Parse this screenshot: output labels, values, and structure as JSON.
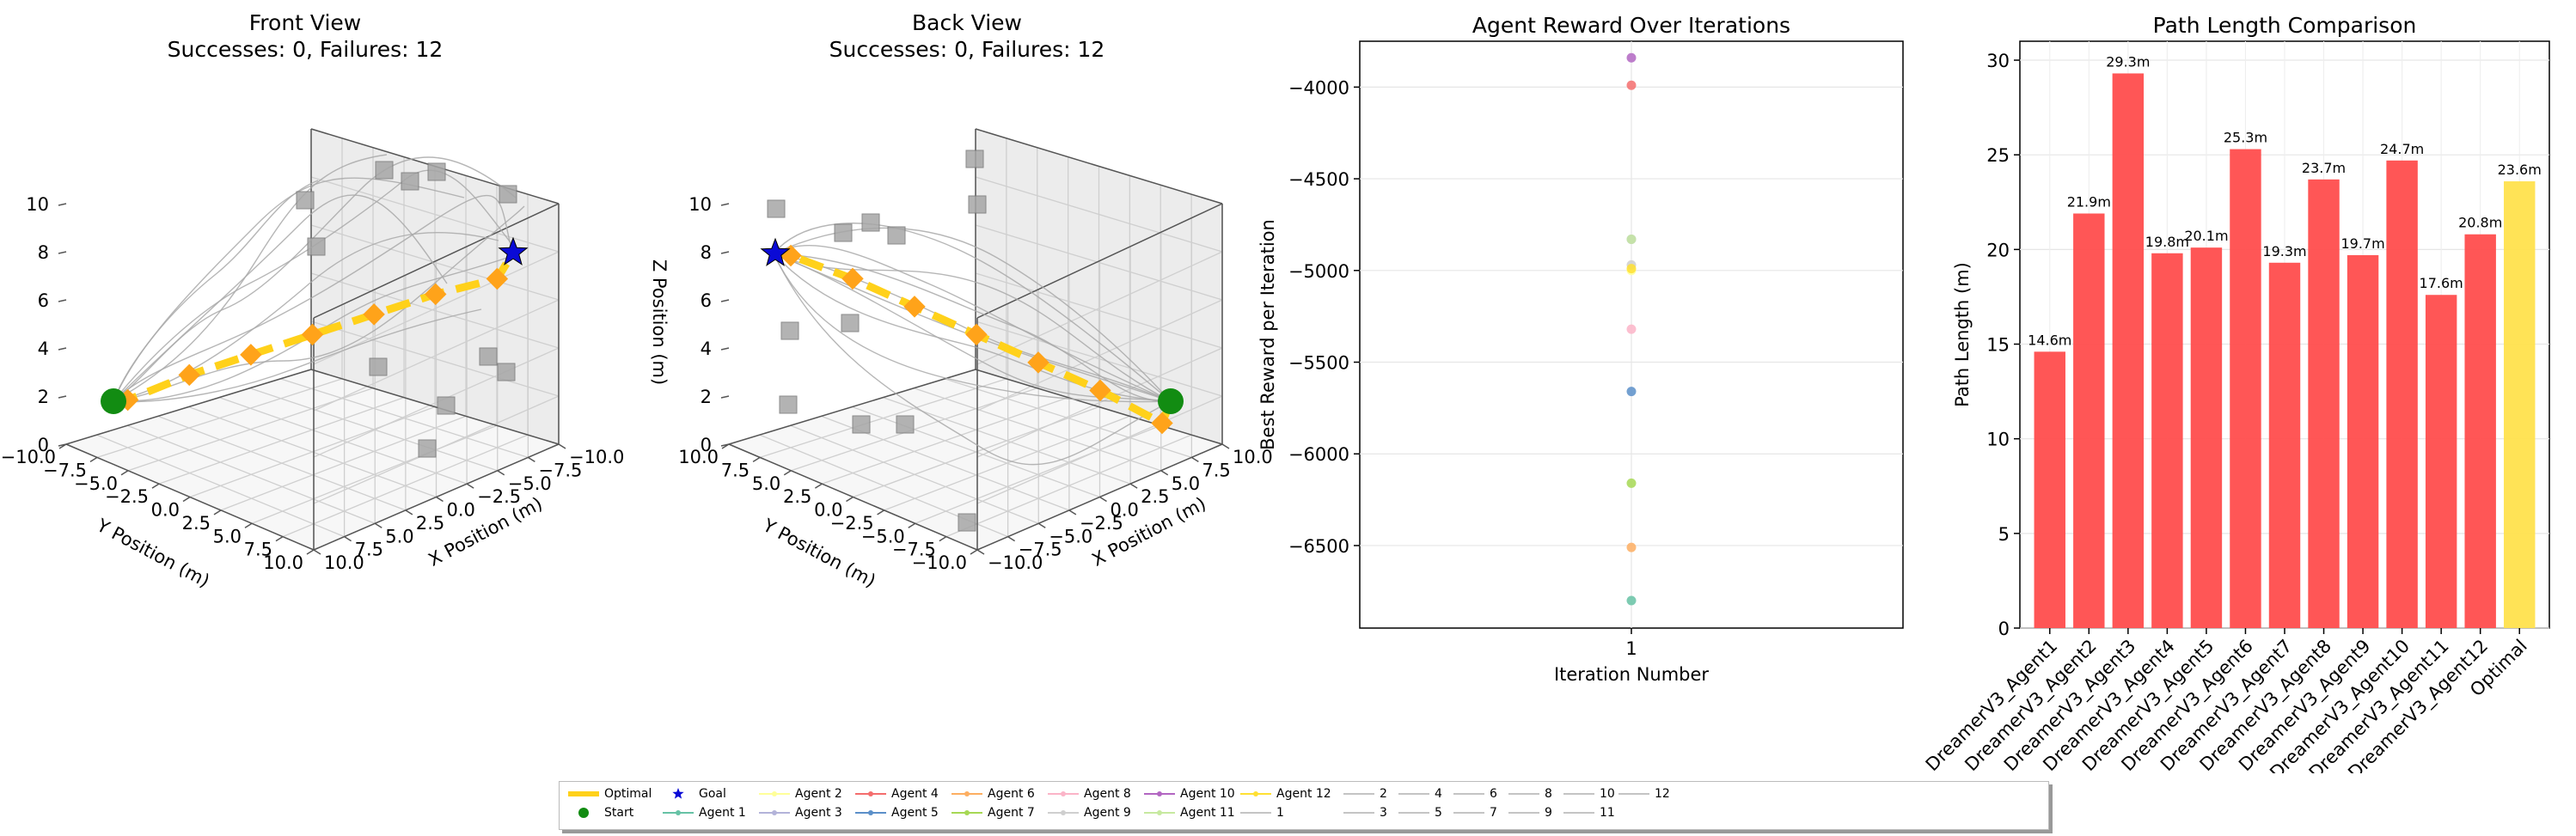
{
  "charts": {
    "front": {
      "title": "Front View",
      "subtitle": "Successes: 0, Failures: 12",
      "xlabel": "X Position (m)",
      "ylabel": "Y Position (m)",
      "zticks": [
        "0",
        "2",
        "4",
        "6",
        "8",
        "10"
      ],
      "yticks": [
        "−10.0",
        "−7.5",
        "−5.0",
        "−2.5",
        "0.0",
        "2.5",
        "5.0",
        "7.5",
        "10.0"
      ],
      "xticks": [
        "10.0",
        "7.5",
        "5.0",
        "2.5",
        "0.0",
        "−2.5",
        "−5.0",
        "−7.5",
        "−10.0"
      ]
    },
    "back": {
      "title": "Back View",
      "subtitle": "Successes: 0, Failures: 12",
      "xlabel": "X Position (m)",
      "ylabel": "Y Position (m)",
      "zlabel": "Z Position (m)",
      "zticks": [
        "0",
        "2",
        "4",
        "6",
        "8",
        "10"
      ],
      "yticks": [
        "10.0",
        "7.5",
        "5.0",
        "2.5",
        "0.0",
        "−2.5",
        "−5.0",
        "−7.5",
        "−10.0"
      ],
      "xticks": [
        "−10.0",
        "−7.5",
        "−5.0",
        "−2.5",
        "0.0",
        "2.5",
        "5.0",
        "7.5",
        "10.0"
      ]
    },
    "reward": {
      "title": "Agent Reward Over Iterations",
      "xlabel": "Iteration Number",
      "ylabel": "Best Reward per Iteration"
    },
    "path": {
      "title": "Path Length Comparison",
      "xlabel": "Agent",
      "ylabel": "Path Length (m)"
    }
  },
  "chart_data": [
    {
      "type": "scatter",
      "title": "Front View",
      "subtitle": "Successes: 0, Failures: 12",
      "xlabel": "X Position (m)",
      "ylabel": "Y Position (m)",
      "zlabel": "",
      "xlim": [
        -10,
        10
      ],
      "ylim": [
        -10,
        10
      ],
      "zlim": [
        0,
        10
      ],
      "optimal_path": {
        "name": "Optimal",
        "points": [
          [
            -7.5,
            -7.5,
            2.0
          ],
          [
            -5.0,
            -5.0,
            3.2
          ],
          [
            -2.5,
            -2.5,
            4.2
          ],
          [
            0,
            0,
            5.2
          ],
          [
            2.5,
            2.5,
            6.2
          ],
          [
            5,
            5,
            7.2
          ],
          [
            7.5,
            7.5,
            8.0
          ]
        ]
      },
      "start": [
        -10,
        -10,
        2.0
      ],
      "goal": [
        10,
        10,
        8.0
      ]
    },
    {
      "type": "scatter",
      "title": "Back View",
      "subtitle": "Successes: 0, Failures: 12",
      "xlabel": "X Position (m)",
      "ylabel": "Y Position (m)",
      "zlabel": "Z Position (m)",
      "xlim": [
        -10,
        10
      ],
      "ylim": [
        -10,
        10
      ],
      "zlim": [
        0,
        10
      ]
    },
    {
      "type": "scatter",
      "title": "Agent Reward Over Iterations",
      "xlabel": "Iteration Number",
      "ylabel": "Best Reward per Iteration",
      "x_categories": [
        "1"
      ],
      "ylim": [
        -6950,
        -3750
      ],
      "yticks": [
        -4000,
        -4500,
        -5000,
        -5500,
        -6000,
        -6500
      ],
      "series": [
        {
          "name": "Agent 1",
          "value": -6800,
          "color": "#66c2a5"
        },
        {
          "name": "Agent 2",
          "value": -5000,
          "color": "#ffff99"
        },
        {
          "name": "Agent 3",
          "value": -4830,
          "color": "#b3b3d9"
        },
        {
          "name": "Agent 4",
          "value": -3990,
          "color": "#f46d6d"
        },
        {
          "name": "Agent 5",
          "value": -5660,
          "color": "#5b8fc9"
        },
        {
          "name": "Agent 6",
          "value": -6510,
          "color": "#fdae61"
        },
        {
          "name": "Agent 7",
          "value": -6160,
          "color": "#a6d854"
        },
        {
          "name": "Agent 8",
          "value": -5320,
          "color": "#fbb4c8"
        },
        {
          "name": "Agent 9",
          "value": -4970,
          "color": "#cfcfcf"
        },
        {
          "name": "Agent 10",
          "value": -3840,
          "color": "#b266c2"
        },
        {
          "name": "Agent 11",
          "value": -4830,
          "color": "#c7e9a0"
        },
        {
          "name": "Agent 12",
          "value": -4990,
          "color": "#ffe033"
        }
      ]
    },
    {
      "type": "bar",
      "title": "Path Length Comparison",
      "xlabel": "Agent",
      "ylabel": "Path Length (m)",
      "ylim": [
        0,
        31
      ],
      "yticks": [
        0,
        5,
        10,
        15,
        20,
        25,
        30
      ],
      "categories": [
        "DreamerV3_Agent1",
        "DreamerV3_Agent2",
        "DreamerV3_Agent3",
        "DreamerV3_Agent4",
        "DreamerV3_Agent5",
        "DreamerV3_Agent6",
        "DreamerV3_Agent7",
        "DreamerV3_Agent8",
        "DreamerV3_Agent9",
        "DreamerV3_Agent10",
        "DreamerV3_Agent11",
        "DreamerV3_Agent12",
        "Optimal"
      ],
      "values": [
        14.6,
        21.9,
        29.3,
        19.8,
        20.1,
        25.3,
        19.3,
        23.7,
        19.7,
        24.7,
        17.6,
        20.8,
        23.6
      ],
      "labels": [
        "14.6m",
        "21.9m",
        "29.3m",
        "19.8m",
        "20.1m",
        "25.3m",
        "19.3m",
        "23.7m",
        "19.7m",
        "24.7m",
        "17.6m",
        "20.8m",
        "23.6m"
      ],
      "colors": {
        "agent": "#ff4d4d",
        "optimal": "#ffe14d"
      }
    }
  ],
  "legend": {
    "items": [
      {
        "label": "Optimal",
        "kind": "thick",
        "color": "#ffd11a"
      },
      {
        "label": "Start",
        "kind": "dot",
        "color": "#128c12"
      },
      {
        "label": "Goal",
        "kind": "star",
        "color": "#0a0ad6"
      },
      {
        "label": "Agent 1",
        "kind": "line",
        "color": "#66c2a5"
      },
      {
        "label": "Agent 2",
        "kind": "line",
        "color": "#ffff99"
      },
      {
        "label": "Agent 3",
        "kind": "line",
        "color": "#b3b3d9"
      },
      {
        "label": "Agent 4",
        "kind": "line",
        "color": "#f46d6d"
      },
      {
        "label": "Agent 5",
        "kind": "line",
        "color": "#5b8fc9"
      },
      {
        "label": "Agent 6",
        "kind": "line",
        "color": "#fdae61"
      },
      {
        "label": "Agent 7",
        "kind": "line",
        "color": "#a6d854"
      },
      {
        "label": "Agent 8",
        "kind": "line",
        "color": "#fbb4c8"
      },
      {
        "label": "Agent 9",
        "kind": "line",
        "color": "#cfcfcf"
      },
      {
        "label": "Agent 10",
        "kind": "line",
        "color": "#b266c2"
      },
      {
        "label": "Agent 11",
        "kind": "line",
        "color": "#c7e9a0"
      },
      {
        "label": "Agent 12",
        "kind": "line",
        "color": "#ffe033"
      },
      {
        "label": "1",
        "kind": "gray",
        "color": "#b0b0b0"
      },
      {
        "label": "2",
        "kind": "gray",
        "color": "#b0b0b0"
      },
      {
        "label": "3",
        "kind": "gray",
        "color": "#b0b0b0"
      },
      {
        "label": "4",
        "kind": "gray",
        "color": "#b0b0b0"
      },
      {
        "label": "5",
        "kind": "gray",
        "color": "#b0b0b0"
      },
      {
        "label": "6",
        "kind": "gray",
        "color": "#b0b0b0"
      },
      {
        "label": "7",
        "kind": "gray",
        "color": "#b0b0b0"
      },
      {
        "label": "8",
        "kind": "gray",
        "color": "#b0b0b0"
      },
      {
        "label": "9",
        "kind": "gray",
        "color": "#b0b0b0"
      },
      {
        "label": "10",
        "kind": "gray",
        "color": "#b0b0b0"
      },
      {
        "label": "11",
        "kind": "gray",
        "color": "#b0b0b0"
      },
      {
        "label": "12",
        "kind": "gray",
        "color": "#b0b0b0"
      }
    ]
  }
}
